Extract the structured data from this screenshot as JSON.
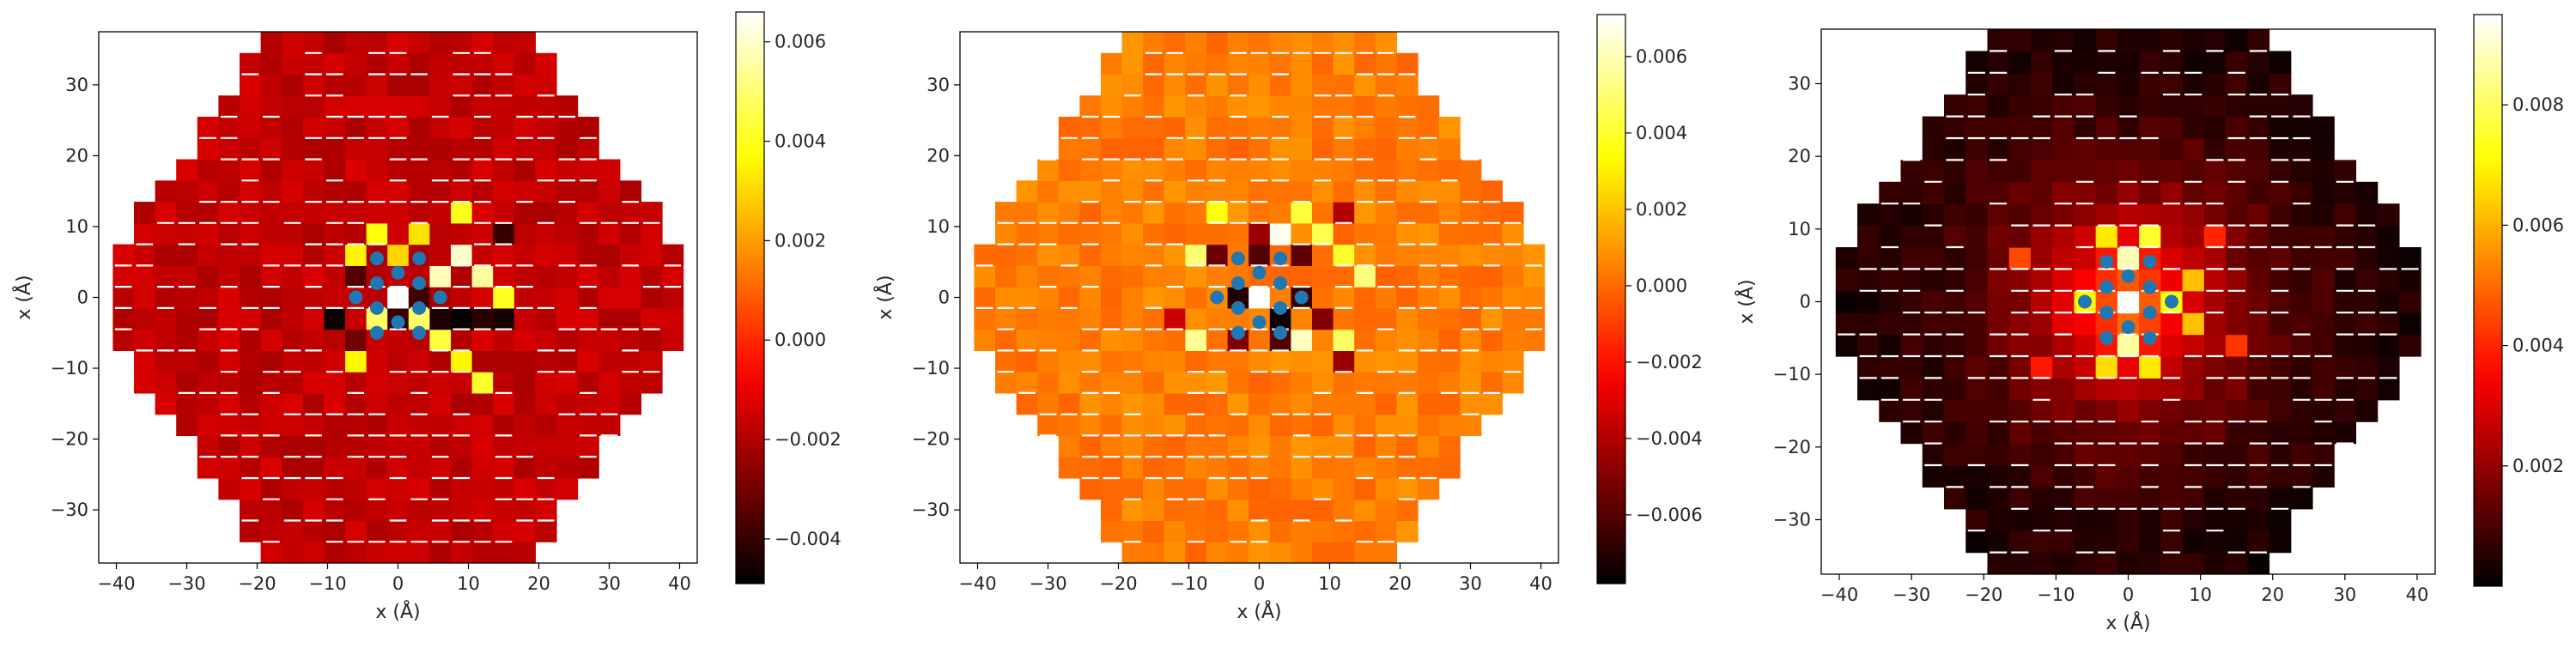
{
  "figure": {
    "background": "#ffffff",
    "colormap": "hot",
    "overlay_point_color": "#1f77b4"
  },
  "chart_data": [
    {
      "type": "heatmap",
      "title": "",
      "xlabel": "x (Å)",
      "ylabel": "x (Å)",
      "xlim": [
        -42.5,
        42.5
      ],
      "ylim": [
        -37.5,
        37.5
      ],
      "xticks": [
        -40,
        -30,
        -20,
        -10,
        0,
        10,
        20,
        30,
        40
      ],
      "yticks": [
        -30,
        -20,
        -10,
        0,
        10,
        20,
        30
      ],
      "xtick_labels": [
        "−40",
        "−30",
        "−20",
        "−10",
        "0",
        "10",
        "20",
        "30",
        "40"
      ],
      "ytick_labels": [
        "−30",
        "−20",
        "−10",
        "0",
        "10",
        "20",
        "30"
      ],
      "colorbar": {
        "range": [
          -0.0049,
          0.0066
        ],
        "ticks": [
          -0.004,
          -0.002,
          0.0,
          0.002,
          0.004,
          0.006
        ],
        "tick_labels": [
          "−0.004",
          "−0.002",
          "0.000",
          "0.002",
          "0.004",
          "0.006"
        ]
      },
      "grid": false,
      "hexagon_half_width": 40,
      "background_value": -0.0017,
      "noise_amplitude": 0.0004,
      "hotspots": [
        {
          "x": 9,
          "y": 6,
          "value": 0.006
        },
        {
          "x": 6,
          "y": 3,
          "value": 0.0058
        },
        {
          "x": 12,
          "y": 3,
          "value": 0.0055
        },
        {
          "x": 3,
          "y": -3,
          "value": 0.0048
        },
        {
          "x": -3,
          "y": -3,
          "value": 0.0048
        },
        {
          "x": 12,
          "y": -12,
          "value": 0.0042
        },
        {
          "x": 15,
          "y": 0,
          "value": 0.004
        },
        {
          "x": 9,
          "y": 12,
          "value": 0.004
        },
        {
          "x": -3,
          "y": 9,
          "value": 0.0038
        },
        {
          "x": 3,
          "y": 9,
          "value": 0.0032
        },
        {
          "x": 6,
          "y": -6,
          "value": 0.0044
        },
        {
          "x": -6,
          "y": -9,
          "value": 0.0036
        },
        {
          "x": -6,
          "y": 6,
          "value": 0.0035
        },
        {
          "x": 9,
          "y": -9,
          "value": 0.0035
        },
        {
          "x": 0,
          "y": 6,
          "value": 0.003
        },
        {
          "x": 9,
          "y": -3,
          "value": -0.0048
        },
        {
          "x": -9,
          "y": -3,
          "value": -0.0047
        },
        {
          "x": 12,
          "y": -3,
          "value": -0.0042
        },
        {
          "x": 15,
          "y": -3,
          "value": -0.0045
        },
        {
          "x": 0,
          "y": 0,
          "value": -0.0049
        },
        {
          "x": 6,
          "y": -3,
          "value": -0.0044
        },
        {
          "x": -6,
          "y": 3,
          "value": -0.0035
        },
        {
          "x": 3,
          "y": 0,
          "value": -0.0038
        },
        {
          "x": 0,
          "y": -3,
          "value": -0.004
        },
        {
          "x": 15,
          "y": 9,
          "value": -0.004
        },
        {
          "x": -6,
          "y": -6,
          "value": -0.003
        }
      ],
      "white_cells": [
        {
          "x": 0,
          "y": 0
        }
      ],
      "overlay_points": [
        {
          "x": -3,
          "y": 5.5
        },
        {
          "x": 3,
          "y": 5.5
        },
        {
          "x": 0,
          "y": 3.5
        },
        {
          "x": -3,
          "y": 2
        },
        {
          "x": 3,
          "y": 2
        },
        {
          "x": -6,
          "y": 0
        },
        {
          "x": 6,
          "y": 0
        },
        {
          "x": -3,
          "y": -1.5
        },
        {
          "x": 3,
          "y": -1.5
        },
        {
          "x": 0,
          "y": -3.5
        },
        {
          "x": -3,
          "y": -5
        },
        {
          "x": 3,
          "y": -5
        }
      ]
    },
    {
      "type": "heatmap",
      "title": "",
      "xlabel": "x (Å)",
      "ylabel": "x (Å)",
      "xlim": [
        -42.5,
        42.5
      ],
      "ylim": [
        -37.5,
        37.5
      ],
      "xticks": [
        -40,
        -30,
        -20,
        -10,
        0,
        10,
        20,
        30,
        40
      ],
      "yticks": [
        -30,
        -20,
        -10,
        0,
        10,
        20,
        30
      ],
      "xtick_labels": [
        "−40",
        "−30",
        "−20",
        "−10",
        "0",
        "10",
        "20",
        "30",
        "40"
      ],
      "ytick_labels": [
        "−30",
        "−20",
        "−10",
        "0",
        "10",
        "20",
        "30"
      ],
      "colorbar": {
        "range": [
          -0.0078,
          0.0071
        ],
        "ticks": [
          -0.006,
          -0.004,
          -0.002,
          0.0,
          0.002,
          0.004,
          0.006
        ],
        "tick_labels": [
          "−0.006",
          "−0.004",
          "−0.002",
          "0.000",
          "0.002",
          "0.004",
          "0.006"
        ]
      },
      "grid": false,
      "hexagon_half_width": 40,
      "background_value": 0.0004,
      "noise_amplitude": 0.0006,
      "hotspots": [
        {
          "x": 3,
          "y": 9,
          "value": 0.0068
        },
        {
          "x": 6,
          "y": -6,
          "value": 0.0062
        },
        {
          "x": -9,
          "y": 6,
          "value": 0.005
        },
        {
          "x": -9,
          "y": -6,
          "value": 0.0055
        },
        {
          "x": 15,
          "y": 3,
          "value": 0.0052
        },
        {
          "x": 12,
          "y": -6,
          "value": 0.0048
        },
        {
          "x": 9,
          "y": 9,
          "value": 0.0045
        },
        {
          "x": 12,
          "y": 6,
          "value": 0.004
        },
        {
          "x": 6,
          "y": 12,
          "value": 0.0042
        },
        {
          "x": -6,
          "y": 12,
          "value": 0.0035
        },
        {
          "x": 0,
          "y": 9,
          "value": -0.0045
        },
        {
          "x": 0,
          "y": 6,
          "value": -0.006
        },
        {
          "x": -6,
          "y": 6,
          "value": -0.0055
        },
        {
          "x": 6,
          "y": 6,
          "value": -0.0058
        },
        {
          "x": 3,
          "y": -3,
          "value": -0.0075
        },
        {
          "x": -3,
          "y": 0,
          "value": -0.007
        },
        {
          "x": 6,
          "y": 0,
          "value": -0.0065
        },
        {
          "x": 9,
          "y": -3,
          "value": -0.005
        },
        {
          "x": 12,
          "y": -9,
          "value": -0.0045
        },
        {
          "x": 3,
          "y": -6,
          "value": -0.006
        },
        {
          "x": -3,
          "y": -6,
          "value": -0.005
        },
        {
          "x": 12,
          "y": 12,
          "value": -0.004
        },
        {
          "x": -12,
          "y": -3,
          "value": -0.0035
        }
      ],
      "white_cells": [
        {
          "x": 0,
          "y": 0
        }
      ],
      "overlay_points": [
        {
          "x": -3,
          "y": 5.5
        },
        {
          "x": 3,
          "y": 5.5
        },
        {
          "x": 0,
          "y": 3.5
        },
        {
          "x": -3,
          "y": 2
        },
        {
          "x": 3,
          "y": 2
        },
        {
          "x": -6,
          "y": 0
        },
        {
          "x": 6,
          "y": 0
        },
        {
          "x": -3,
          "y": -1.5
        },
        {
          "x": 3,
          "y": -1.5
        },
        {
          "x": 0,
          "y": -3.5
        },
        {
          "x": -3,
          "y": -5
        },
        {
          "x": 3,
          "y": -5
        }
      ]
    },
    {
      "type": "heatmap",
      "title": "",
      "xlabel": "x (Å)",
      "ylabel": "x (Å)",
      "xlim": [
        -42.5,
        42.5
      ],
      "ylim": [
        -37.5,
        37.5
      ],
      "xticks": [
        -40,
        -30,
        -20,
        -10,
        0,
        10,
        20,
        30,
        40
      ],
      "yticks": [
        -30,
        -20,
        -10,
        0,
        10,
        20,
        30
      ],
      "xtick_labels": [
        "−40",
        "−30",
        "−20",
        "−10",
        "0",
        "10",
        "20",
        "30",
        "40"
      ],
      "ytick_labels": [
        "−30",
        "−20",
        "−10",
        "0",
        "10",
        "20",
        "30"
      ],
      "colorbar": {
        "range": [
          0.0,
          0.0095
        ],
        "ticks": [
          0.002,
          0.004,
          0.006,
          0.008
        ],
        "tick_labels": [
          "0.002",
          "0.004",
          "0.006",
          "0.008"
        ]
      },
      "grid": false,
      "hexagon_half_width": 40,
      "radial_decay": {
        "peak": 0.0058,
        "scale": 12
      },
      "noise_amplitude": 0.0003,
      "hotspots": [
        {
          "x": 3,
          "y": 9,
          "value": 0.0075
        },
        {
          "x": -3,
          "y": 9,
          "value": 0.0068
        },
        {
          "x": 9,
          "y": 3,
          "value": 0.0062
        },
        {
          "x": 9,
          "y": -3,
          "value": 0.0062
        },
        {
          "x": 3,
          "y": -9,
          "value": 0.0068
        },
        {
          "x": -3,
          "y": -9,
          "value": 0.0066
        },
        {
          "x": 0,
          "y": 6,
          "value": 0.0088
        },
        {
          "x": 0,
          "y": -6,
          "value": 0.0086
        },
        {
          "x": 6,
          "y": 0,
          "value": 0.0072
        },
        {
          "x": -6,
          "y": 0,
          "value": 0.007
        },
        {
          "x": -15,
          "y": 6,
          "value": 0.0045
        },
        {
          "x": 15,
          "y": -6,
          "value": 0.0042
        },
        {
          "x": 12,
          "y": 9,
          "value": 0.004
        },
        {
          "x": -12,
          "y": -9,
          "value": 0.0038
        }
      ],
      "white_cells": [
        {
          "x": 0,
          "y": 0
        }
      ],
      "overlay_points": [
        {
          "x": -3,
          "y": 5.5
        },
        {
          "x": 3,
          "y": 5.5
        },
        {
          "x": 0,
          "y": 3.5
        },
        {
          "x": -3,
          "y": 2
        },
        {
          "x": 3,
          "y": 2
        },
        {
          "x": -6,
          "y": 0
        },
        {
          "x": 6,
          "y": 0
        },
        {
          "x": -3,
          "y": -1.5
        },
        {
          "x": 3,
          "y": -1.5
        },
        {
          "x": 0,
          "y": -3.5
        },
        {
          "x": -3,
          "y": -5
        },
        {
          "x": 3,
          "y": -5
        }
      ]
    }
  ]
}
